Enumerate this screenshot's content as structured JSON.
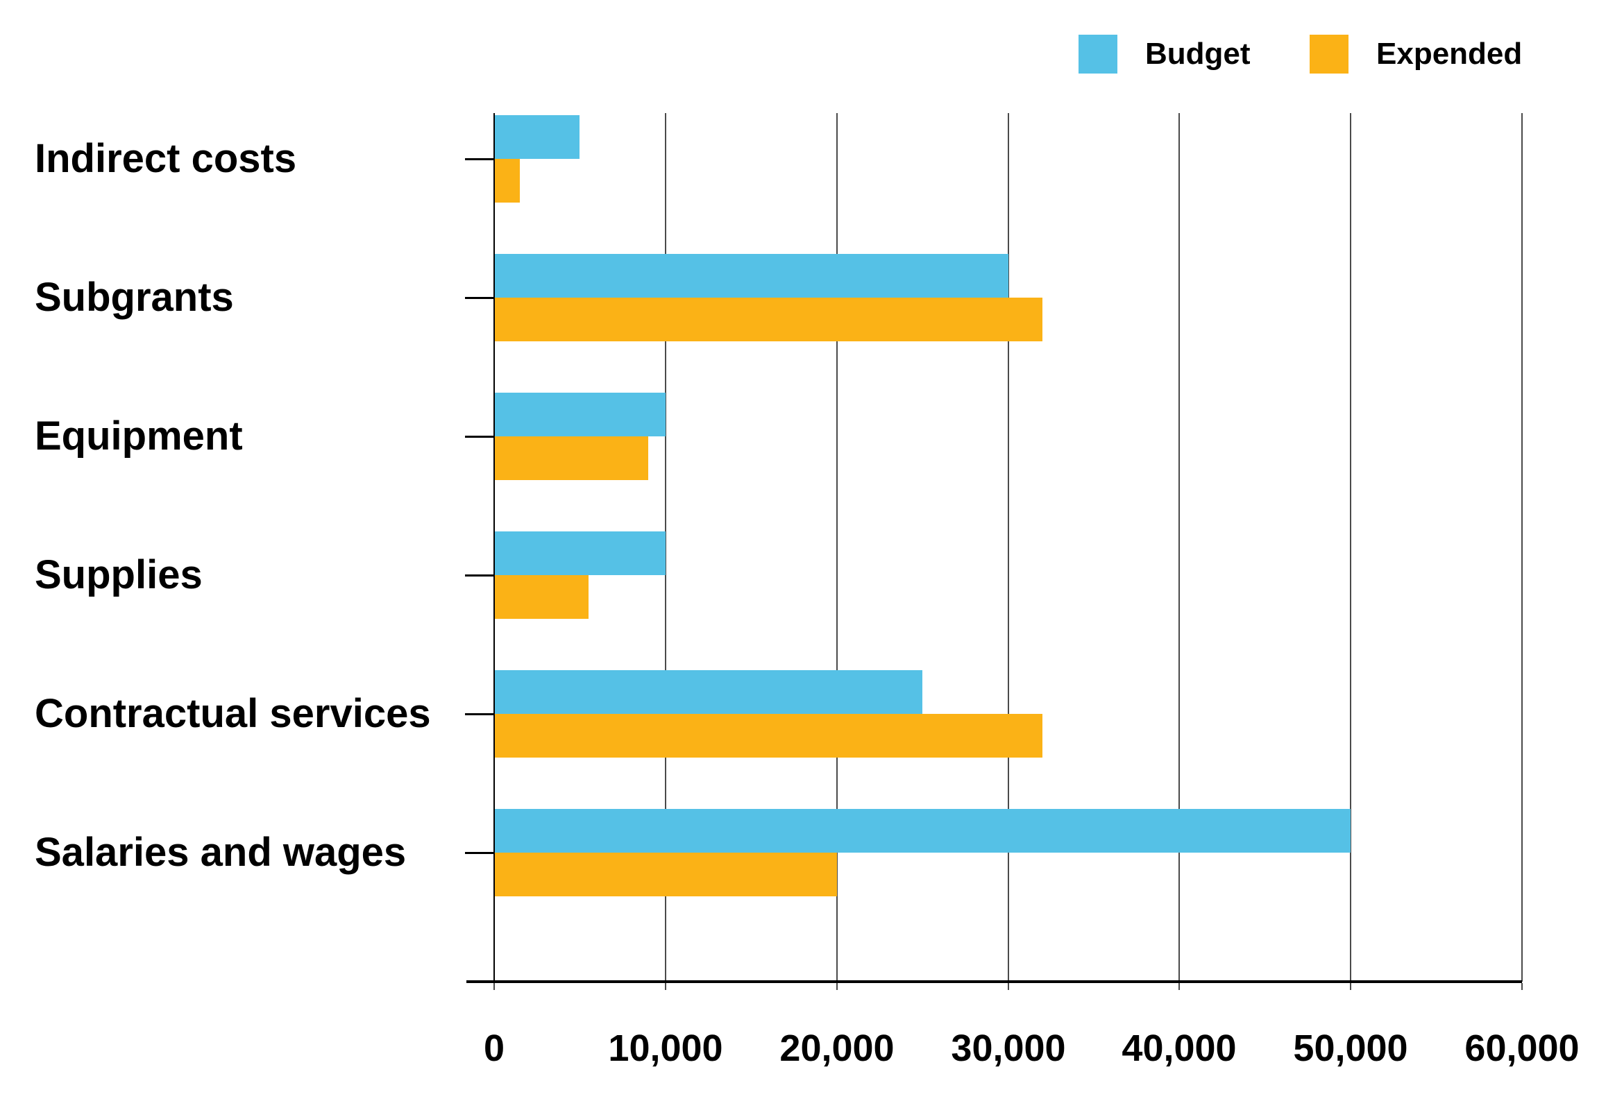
{
  "chart_data": {
    "type": "bar",
    "orientation": "horizontal",
    "title": "",
    "xlabel": "",
    "ylabel": "",
    "categories": [
      "Indirect costs",
      "Subgrants",
      "Equipment",
      "Supplies",
      "Contractual services",
      "Salaries and wages"
    ],
    "series": [
      {
        "name": "Budget",
        "color": "#55C1E6",
        "values": [
          5000,
          30000,
          10000,
          10000,
          25000,
          50000
        ]
      },
      {
        "name": "Expended",
        "color": "#FBB216",
        "values": [
          1500,
          32000,
          9000,
          5500,
          32000,
          20000
        ]
      }
    ],
    "x_axis": {
      "min": 0,
      "max": 60000,
      "tick_interval": 10000,
      "tick_labels": [
        "0",
        "10,000",
        "20,000",
        "30,000",
        "40,000",
        "50,000",
        "60,000"
      ]
    },
    "legend": {
      "position": "top-right",
      "entries": [
        "Budget",
        "Expended"
      ]
    },
    "grid": "vertical-gridlines",
    "category_order": "top-to-bottom"
  },
  "colors": {
    "background": "#ffffff",
    "text": "#000000",
    "gridline": "#4a4a4a",
    "axis": "#000000",
    "budget": "#55C1E6",
    "expended": "#FBB216"
  }
}
